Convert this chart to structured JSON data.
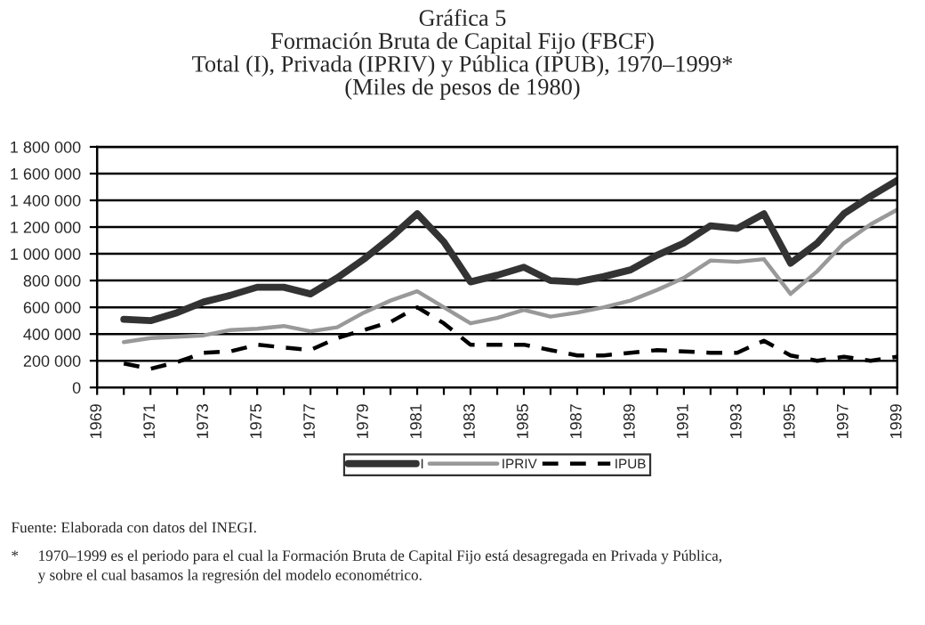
{
  "chart_data": {
    "type": "line",
    "title": "Gráfica 5\nFormación Bruta de Capital Fijo (FBCF)\nTotal (I), Privada (IPRIV) y Pública (IPUB), 1970–1999*\n(Miles de pesos de 1980)",
    "x": [
      1970,
      1971,
      1972,
      1973,
      1974,
      1975,
      1976,
      1977,
      1978,
      1979,
      1980,
      1981,
      1982,
      1983,
      1984,
      1985,
      1986,
      1987,
      1988,
      1989,
      1990,
      1991,
      1992,
      1993,
      1994,
      1995,
      1996,
      1997,
      1998,
      1999
    ],
    "series": [
      {
        "name": "I",
        "color": "#333333",
        "line_style": "solid",
        "values": [
          510000,
          500000,
          560000,
          640000,
          690000,
          750000,
          750000,
          700000,
          820000,
          960000,
          1120000,
          1300000,
          1090000,
          790000,
          840000,
          900000,
          800000,
          790000,
          830000,
          880000,
          990000,
          1080000,
          1210000,
          1190000,
          1300000,
          930000,
          1080000,
          1300000,
          1430000,
          1550000
        ]
      },
      {
        "name": "IPRIV",
        "color": "#999999",
        "line_style": "solid",
        "values": [
          340000,
          370000,
          380000,
          390000,
          430000,
          440000,
          460000,
          420000,
          450000,
          560000,
          650000,
          720000,
          600000,
          480000,
          520000,
          580000,
          530000,
          560000,
          600000,
          650000,
          730000,
          820000,
          950000,
          940000,
          960000,
          700000,
          870000,
          1080000,
          1220000,
          1330000
        ]
      },
      {
        "name": "IPUB",
        "color": "#000000",
        "line_style": "dashed",
        "values": [
          180000,
          140000,
          190000,
          260000,
          270000,
          320000,
          300000,
          280000,
          370000,
          430000,
          490000,
          600000,
          480000,
          320000,
          320000,
          320000,
          280000,
          240000,
          240000,
          260000,
          280000,
          270000,
          260000,
          260000,
          350000,
          240000,
          200000,
          230000,
          200000,
          230000
        ]
      }
    ],
    "xlim": [
      1969,
      1999
    ],
    "xticks": [
      1969,
      {
        "value": 1970,
        "label": null
      },
      1971,
      {
        "value": 1972,
        "label": null
      },
      1973,
      {
        "value": 1974,
        "label": null
      },
      1975,
      {
        "value": 1976,
        "label": null
      },
      1977,
      {
        "value": 1978,
        "label": null
      },
      1979,
      {
        "value": 1980,
        "label": null
      },
      1981,
      {
        "value": 1982,
        "label": null
      },
      1983,
      {
        "value": 1984,
        "label": null
      },
      1985,
      {
        "value": 1986,
        "label": null
      },
      1987,
      {
        "value": 1988,
        "label": null
      },
      1989,
      {
        "value": 1990,
        "label": null
      },
      1991,
      {
        "value": 1992,
        "label": null
      },
      1993,
      {
        "value": 1994,
        "label": null
      },
      1995,
      {
        "value": 1996,
        "label": null
      },
      1997,
      {
        "value": 1998,
        "label": null
      },
      1999
    ],
    "ylim": [
      0,
      1800000
    ],
    "yticks": [
      0,
      {
        "value": 200000,
        "label": "200 000"
      },
      {
        "value": 400000,
        "label": "400 000"
      },
      {
        "value": 600000,
        "label": "600 000"
      },
      {
        "value": 800000,
        "label": "800 000"
      },
      {
        "value": 1000000,
        "label": "1 000 000"
      },
      {
        "value": 1200000,
        "label": "1 200 000"
      },
      {
        "value": 1400000,
        "label": "1 400 000"
      },
      {
        "value": 1600000,
        "label": "1 600 000"
      },
      {
        "value": 1800000,
        "label": "1 800 000"
      }
    ],
    "grid": "y",
    "legend": "bottom",
    "marker": "none",
    "annotations": [
      "Fuente: Elaborada con datos del INEGI.",
      "*     1970–1999 es el periodo para el cual la Formación Bruta de Capital Fijo está desagregada en Privada y Pública,\n       y sobre el cual basamos la regresión del modelo econométrico."
    ]
  }
}
